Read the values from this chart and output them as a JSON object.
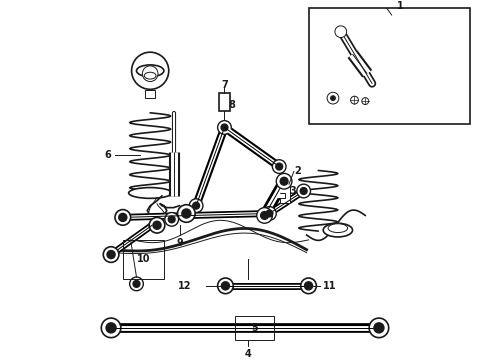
{
  "bg_color": "#ffffff",
  "line_color": "#1a1a1a",
  "label_color": "#000000",
  "fig_width": 4.9,
  "fig_height": 3.6,
  "dpi": 100,
  "xlim": [
    0,
    490
  ],
  "ylim": [
    0,
    360
  ]
}
